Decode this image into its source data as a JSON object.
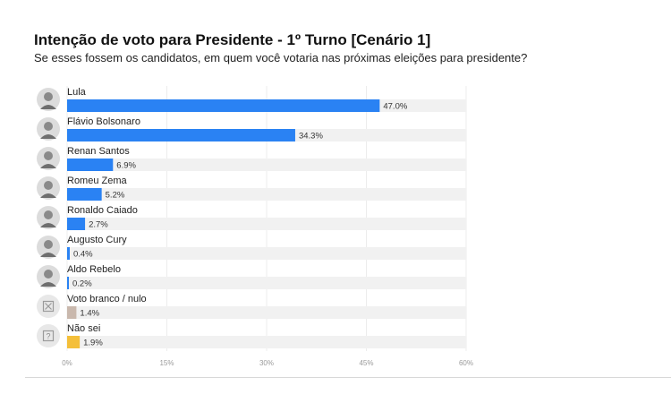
{
  "header": {
    "title": "Intenção de voto para Presidente - 1º Turno [Cenário 1]",
    "subtitle": "Se esses fossem os candidatos, em quem você votaria nas próximas eleições para presidente?"
  },
  "chart_data": {
    "type": "bar",
    "orientation": "horizontal",
    "title": "Intenção de voto para Presidente - 1º Turno [Cenário 1]",
    "subtitle": "Se esses fossem os candidatos, em quem você votaria nas próximas eleições para presidente?",
    "categories": [
      "Lula",
      "Flávio Bolsonaro",
      "Renan Santos",
      "Romeu Zema",
      "Ronaldo Caiado",
      "Augusto Cury",
      "Aldo Rebelo",
      "Voto branco / nulo",
      "Não sei"
    ],
    "values": [
      47.0,
      34.3,
      6.9,
      5.2,
      2.7,
      0.4,
      0.2,
      1.4,
      1.9
    ],
    "value_labels": [
      "47.0%",
      "34.3%",
      "6.9%",
      "5.2%",
      "2.7%",
      "0.4%",
      "0.2%",
      "1.4%",
      "1.9%"
    ],
    "bar_colors": [
      "#2a82f3",
      "#2a82f3",
      "#2a82f3",
      "#2a82f3",
      "#2a82f3",
      "#2a82f3",
      "#2a82f3",
      "#c9b8ad",
      "#f4bf3a"
    ],
    "row_icons": [
      "avatar",
      "avatar",
      "avatar",
      "avatar",
      "avatar",
      "avatar",
      "avatar",
      "blank-vote-icon",
      "question-mark-icon"
    ],
    "xlim": [
      0,
      60
    ],
    "x_ticks": [
      0,
      15,
      30,
      45,
      60
    ],
    "x_tick_labels": [
      "0%",
      "15%",
      "30%",
      "45%",
      "60%"
    ],
    "track_color": "#f1f1f1",
    "grid": true,
    "legend": "none"
  }
}
